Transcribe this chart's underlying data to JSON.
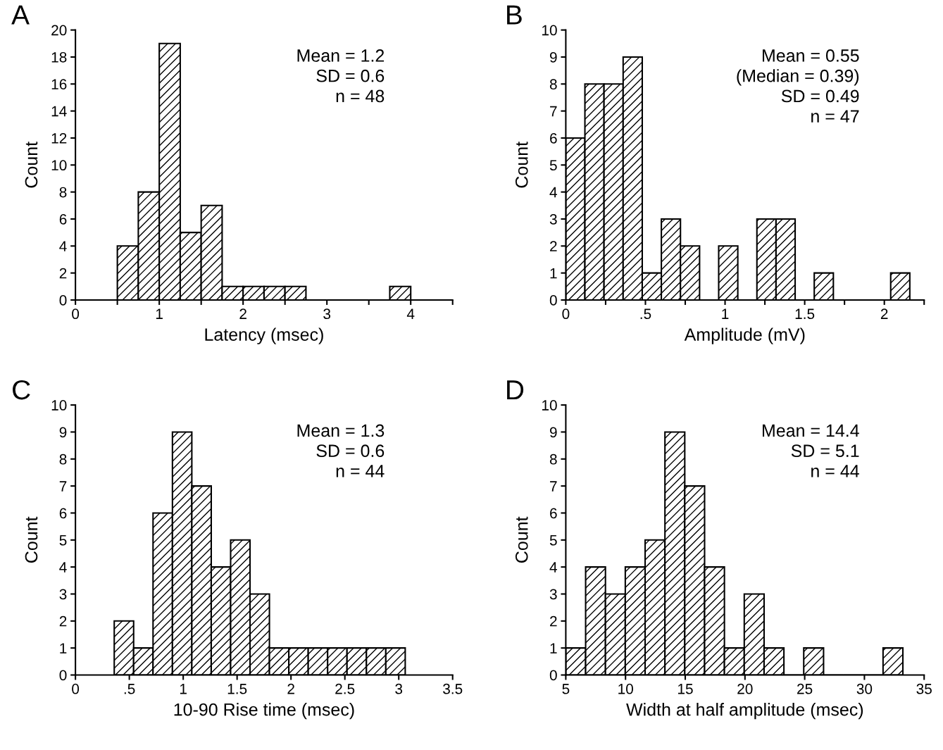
{
  "chart_data": [
    {
      "type": "histogram",
      "title": "A",
      "xlabel": "Latency (msec)",
      "ylabel": "Count",
      "bins": [
        0.5,
        0.75,
        1.0,
        1.25,
        1.5,
        1.75,
        2.0,
        2.25,
        2.5,
        2.75,
        3.0,
        3.25,
        3.5,
        3.75,
        4.0
      ],
      "values": [
        4,
        8,
        19,
        5,
        7,
        1,
        1,
        1,
        1,
        0,
        0,
        0,
        0,
        1
      ],
      "xlim": [
        0,
        4.5
      ],
      "xticks": [
        0,
        {
          "value": 0.5,
          "label": null
        },
        1,
        {
          "value": 1.5,
          "label": null
        },
        2,
        {
          "value": 2.5,
          "label": null
        },
        3,
        {
          "value": 3.5,
          "label": null
        },
        4,
        {
          "value": 4.5,
          "label": null
        }
      ],
      "ylim": [
        0,
        20
      ],
      "yticks": [
        0,
        2,
        4,
        6,
        8,
        10,
        12,
        14,
        16,
        18,
        20
      ],
      "grid": false,
      "annotations": [
        "Mean = 1.2",
        "SD = 0.6",
        "n = 48"
      ]
    },
    {
      "type": "histogram",
      "title": "B",
      "xlabel": "Amplitude (mV)",
      "ylabel": "Count",
      "bins": [
        0,
        0.12,
        0.24,
        0.36,
        0.48,
        0.6,
        0.72,
        0.84,
        0.96,
        1.08,
        1.2,
        1.32,
        1.44,
        1.56,
        1.68,
        1.8,
        1.92,
        2.04,
        2.16
      ],
      "values": [
        6,
        8,
        8,
        9,
        1,
        3,
        2,
        0,
        2,
        0,
        3,
        3,
        0,
        1,
        0,
        0,
        0,
        1
      ],
      "xlim": [
        0,
        2.25
      ],
      "xticks": [
        0,
        {
          "value": 0.25,
          "label": null
        },
        {
          "value": 0.5,
          "label": ".5"
        },
        {
          "value": 0.75,
          "label": null
        },
        1,
        {
          "value": 1.25,
          "label": null
        },
        1.5,
        {
          "value": 1.75,
          "label": null
        },
        2,
        {
          "value": 2.25,
          "label": null
        }
      ],
      "ylim": [
        0,
        10
      ],
      "yticks": [
        0,
        1,
        2,
        3,
        4,
        5,
        6,
        7,
        8,
        9,
        10
      ],
      "grid": false,
      "annotations": [
        "Mean = 0.55",
        "(Median = 0.39)",
        "SD = 0.49",
        "n = 47"
      ]
    },
    {
      "type": "histogram",
      "title": "C",
      "xlabel": "10-90 Rise time (msec)",
      "ylabel": "Count",
      "bins": [
        0.36,
        0.54,
        0.72,
        0.9,
        1.08,
        1.26,
        1.44,
        1.62,
        1.8,
        1.98,
        2.16,
        2.34,
        2.52,
        2.7,
        2.88,
        3.06
      ],
      "values": [
        2,
        1,
        6,
        9,
        7,
        4,
        5,
        3,
        1,
        1,
        1,
        1,
        1,
        1,
        1
      ],
      "xlim": [
        0,
        3.5
      ],
      "xticks": [
        0,
        {
          "value": 0.5,
          "label": ".5"
        },
        1,
        1.5,
        2,
        2.5,
        3,
        3.5
      ],
      "ylim": [
        0,
        10
      ],
      "yticks": [
        0,
        1,
        2,
        3,
        4,
        5,
        6,
        7,
        8,
        9,
        10
      ],
      "grid": false,
      "annotations": [
        "Mean = 1.3",
        "SD = 0.6",
        "n = 44"
      ]
    },
    {
      "type": "histogram",
      "title": "D",
      "xlabel": "Width at half amplitude (msec)",
      "ylabel": "Count",
      "bins": [
        5,
        6.66,
        8.32,
        9.98,
        11.64,
        13.3,
        14.96,
        16.62,
        18.28,
        19.94,
        21.6,
        23.26,
        24.92,
        26.58,
        28.24,
        29.9,
        31.56,
        33.22
      ],
      "values": [
        1,
        4,
        3,
        4,
        5,
        9,
        7,
        4,
        1,
        3,
        1,
        0,
        1,
        0,
        0,
        0,
        1
      ],
      "xlim": [
        5,
        35
      ],
      "xticks": [
        5,
        10,
        15,
        20,
        25,
        30,
        35
      ],
      "ylim": [
        0,
        10
      ],
      "yticks": [
        0,
        1,
        2,
        3,
        4,
        5,
        6,
        7,
        8,
        9,
        10
      ],
      "grid": false,
      "annotations": [
        "Mean = 14.4",
        "SD = 5.1",
        "n = 44"
      ]
    }
  ]
}
